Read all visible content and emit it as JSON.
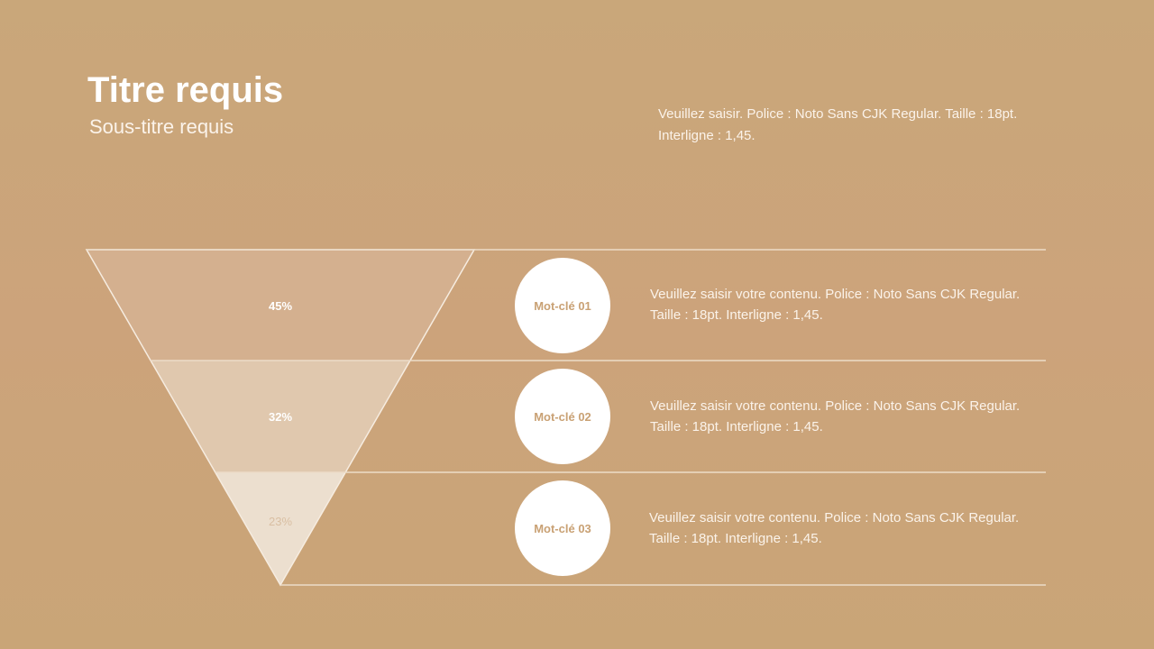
{
  "header": {
    "title": "Titre requis",
    "subtitle": "Sous-titre requis",
    "intro": "Veuillez saisir. Police : Noto Sans CJK Regular. Taille : 18pt. Interligne : 1,45."
  },
  "funnel": [
    {
      "percent": "45%",
      "keyword": "Mot-clé 01",
      "text": "Veuillez saisir votre contenu. Police : Noto Sans CJK Regular. Taille : 18pt. Interligne : 1,45.",
      "color": "#d4b08f"
    },
    {
      "percent": "32%",
      "keyword": "Mot-clé 02",
      "text": "Veuillez saisir votre contenu. Police : Noto Sans CJK Regular. Taille : 18pt. Interligne : 1,45.",
      "color": "#e0c8ae"
    },
    {
      "percent": "23%",
      "keyword": "Mot-clé 03",
      "text": "Veuillez saisir votre contenu. Police : Noto Sans CJK Regular. Taille : 18pt. Interligne : 1,45.",
      "color": "#ecdfcf"
    }
  ]
}
